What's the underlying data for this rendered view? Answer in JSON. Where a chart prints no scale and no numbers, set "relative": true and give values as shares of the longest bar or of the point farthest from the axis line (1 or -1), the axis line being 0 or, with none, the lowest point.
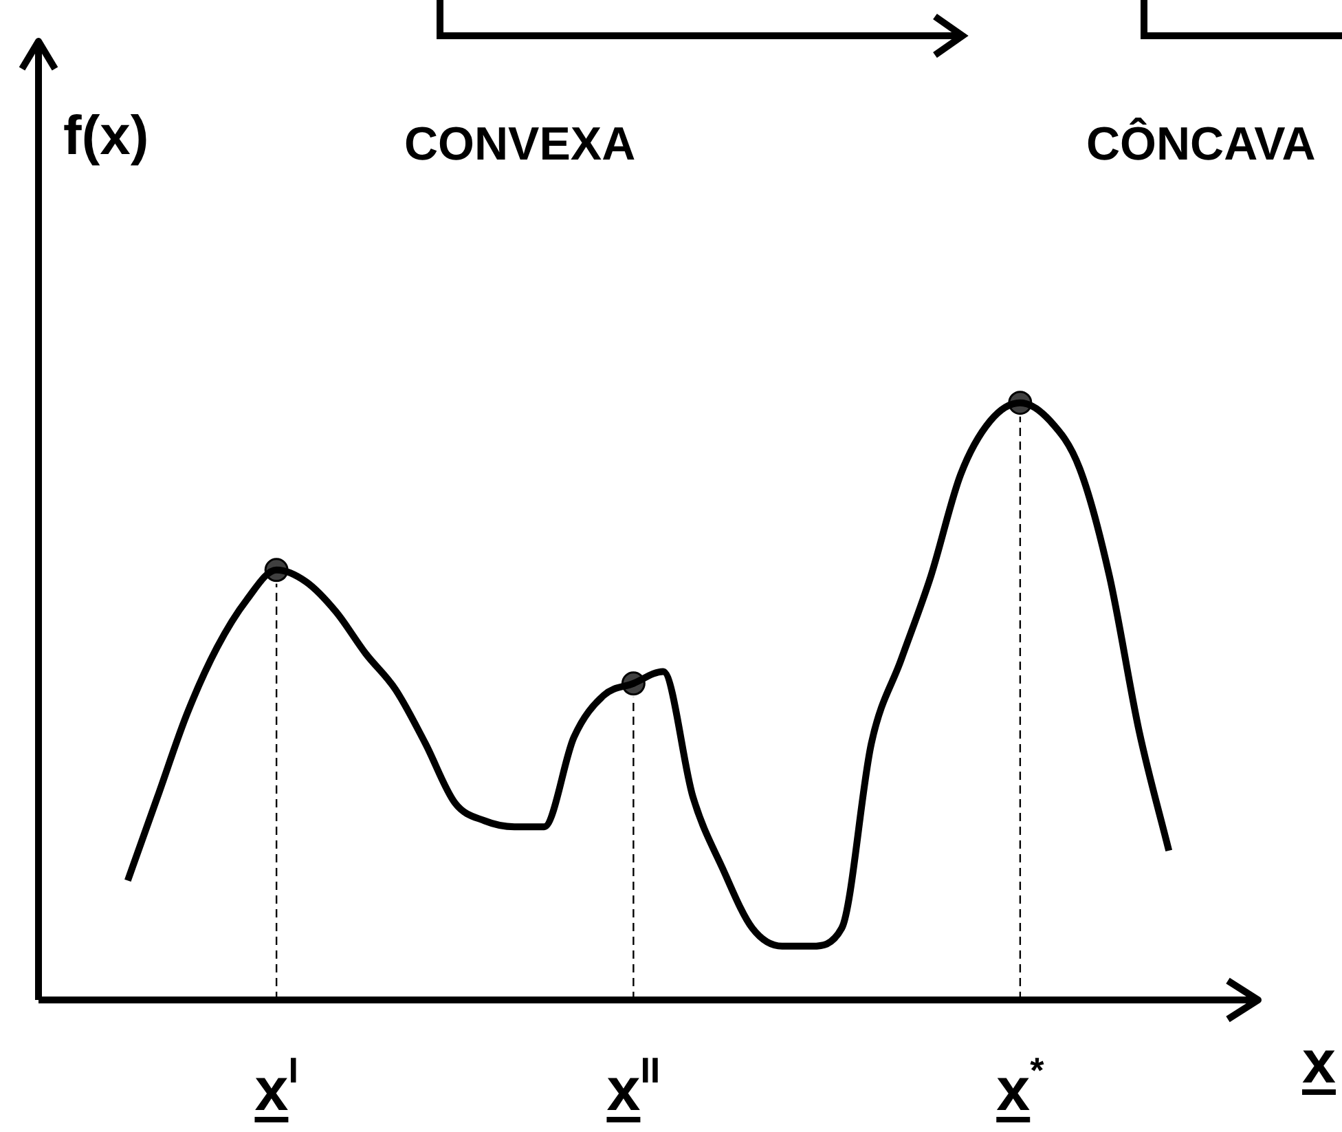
{
  "chart_data": {
    "type": "line",
    "relative": true,
    "ylabel": "f(x)",
    "xlabel": "x",
    "categories": [
      null,
      null,
      null,
      null,
      null,
      null,
      null,
      null,
      "x$^{I}$",
      null,
      null,
      null,
      null,
      null,
      null,
      null,
      null,
      null,
      null,
      null,
      "x$^{II}$",
      null,
      null,
      null,
      null,
      null,
      null,
      null,
      null,
      null,
      null,
      null,
      null,
      "x$^{*}$",
      null,
      null,
      null,
      null,
      null,
      null,
      null,
      null
    ],
    "series": [
      {
        "color": "#000000",
        "values": [
          null,
          null,
          null,
          0.2,
          0.34,
          0.48,
          0.59,
          0.67,
          0.72,
          0.7,
          0.65,
          0.58,
          0.52,
          0.43,
          0.33,
          0.3,
          0.29,
          0.29,
          0.44,
          0.51,
          0.53,
          0.55,
          0.34,
          0.22,
          0.12,
          0.09,
          0.09,
          0.12,
          0.43,
          0.57,
          0.71,
          0.88,
          0.97,
          1,
          0.97,
          0.89,
          0.71,
          0.45,
          0.25,
          null,
          null,
          null
        ]
      },
      {
        "type": "scatter",
        "color": "#404040",
        "marker": "circle",
        "x": [
          "x$^{I}$",
          "x$^{II}$",
          "x$^{*}$"
        ],
        "values": [
          0.72,
          0.53,
          1
        ]
      }
    ],
    "ref_lines": [
      {
        "axis": "x",
        "value": "x$^{I}$",
        "line_style": "dashed",
        "color": "#000000"
      },
      {
        "axis": "x",
        "value": "x$^{II}$",
        "line_style": "dashed",
        "color": "#000000"
      },
      {
        "axis": "x",
        "value": "x$^{*}$",
        "line_style": "dashed",
        "color": "#000000"
      }
    ],
    "annotations": [
      "CONVEXA",
      "CÔNCAVA"
    ],
    "grid": false,
    "legend": false
  }
}
